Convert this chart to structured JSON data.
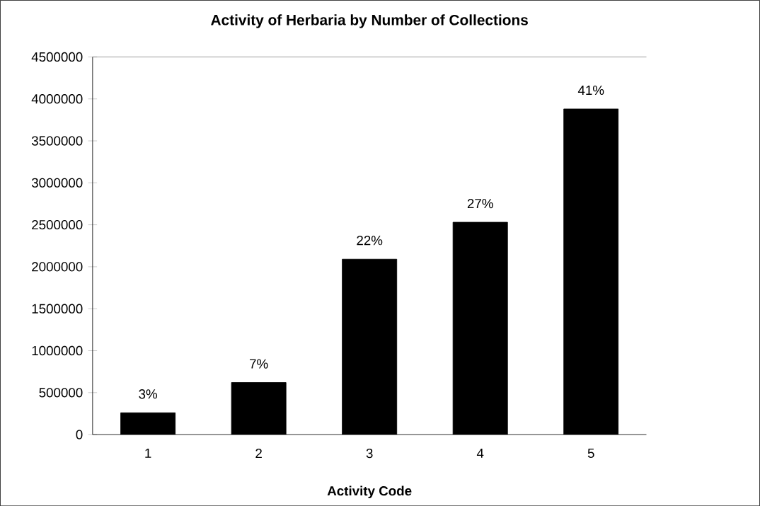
{
  "chart_data": {
    "type": "bar",
    "title": "Activity of Herbaria by Number of Collections",
    "xlabel": "Activity Code",
    "categories": [
      "1",
      "2",
      "3",
      "4",
      "5"
    ],
    "values": [
      260000,
      620000,
      2090000,
      2530000,
      3880000
    ],
    "annotations": [
      {
        "text": "3%",
        "x": "1",
        "y": 260000
      },
      {
        "text": "7%",
        "x": "2",
        "y": 620000
      },
      {
        "text": "22%",
        "x": "3",
        "y": 2090000
      },
      {
        "text": "27%",
        "x": "4",
        "y": 2530000
      },
      {
        "text": "41%",
        "x": "5",
        "y": 3880000
      }
    ],
    "color": "#000000",
    "ylim": [
      0,
      4500000
    ],
    "yticks": [
      0,
      500000,
      1000000,
      1500000,
      2000000,
      2500000,
      3000000,
      3500000,
      4000000,
      4500000
    ]
  }
}
